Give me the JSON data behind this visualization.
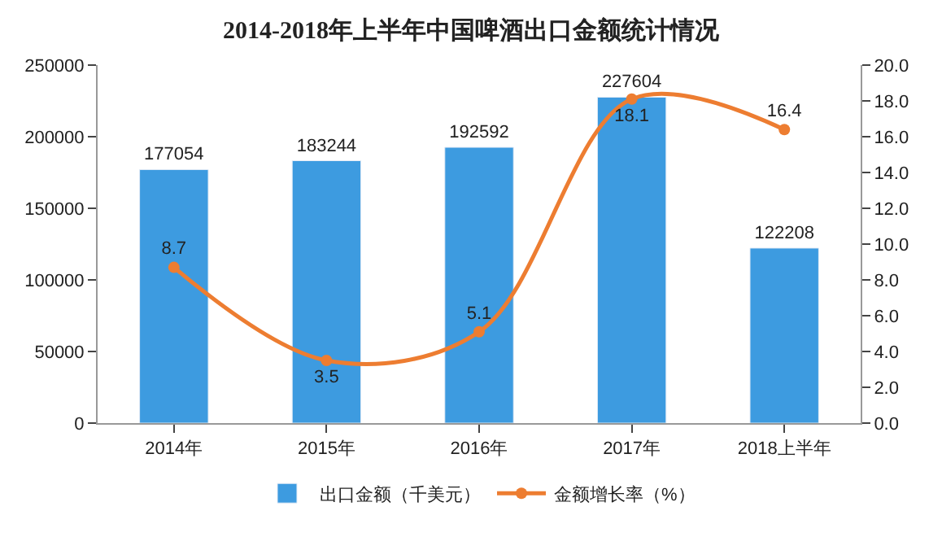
{
  "chart_data": {
    "type": "bar",
    "title": "2014-2018年上半年中国啤酒出口金额统计情况",
    "categories": [
      "2014年",
      "2015年",
      "2016年",
      "2017年",
      "2018上半年"
    ],
    "series": [
      {
        "name": "出口金额（千美元）",
        "color": "#3d9be0",
        "values": [
          177054,
          183244,
          192592,
          227604,
          122208
        ]
      },
      {
        "name": "金额增长率（%）",
        "color": "#ed7d31",
        "type": "line",
        "axis": "y2",
        "values": [
          8.7,
          3.5,
          5.1,
          18.1,
          16.4
        ]
      }
    ],
    "ylim": [
      0,
      250000
    ],
    "yticks": [
      0,
      50000,
      100000,
      150000,
      200000,
      250000
    ],
    "y2lim": [
      0,
      20
    ],
    "y2ticks": [
      {
        "value": 0,
        "label": "0.0"
      },
      {
        "value": 2,
        "label": "2.0"
      },
      {
        "value": 4,
        "label": "4.0"
      },
      {
        "value": 6,
        "label": "6.0"
      },
      {
        "value": 8,
        "label": "8.0"
      },
      {
        "value": 10,
        "label": "10.0"
      },
      {
        "value": 12,
        "label": "12.0"
      },
      {
        "value": 14,
        "label": "14.0"
      },
      {
        "value": 16,
        "label": "16.0"
      },
      {
        "value": 18,
        "label": "18.0"
      },
      {
        "value": 20,
        "label": "20.0"
      }
    ],
    "data_labels": true,
    "legend": "bottom",
    "marker": "circle"
  }
}
